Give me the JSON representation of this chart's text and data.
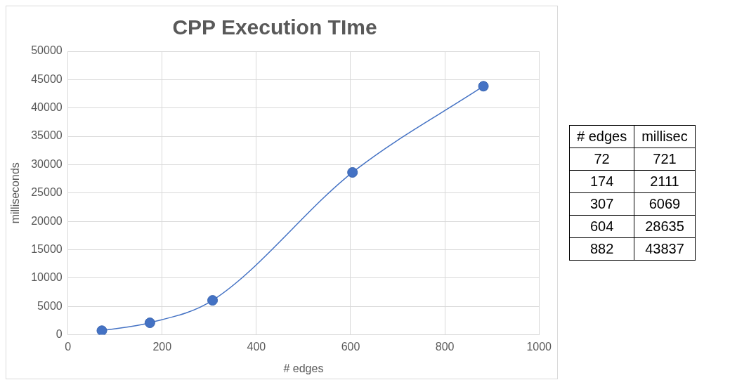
{
  "chart_data": [
    {
      "type": "line",
      "title": "CPP Execution TIme",
      "xlabel": "# edges",
      "ylabel": "milliseconds",
      "x": [
        72,
        174,
        307,
        604,
        882
      ],
      "series": [
        {
          "color": "#4472c4",
          "values": [
            721,
            2111,
            6069,
            28635,
            43837
          ]
        }
      ],
      "xlim": [
        0,
        1000
      ],
      "xticks": [
        0,
        200,
        400,
        600,
        800,
        1000
      ],
      "ylim": [
        0,
        50000
      ],
      "yticks": [
        0,
        5000,
        10000,
        15000,
        20000,
        25000,
        30000,
        35000,
        40000,
        45000,
        50000
      ],
      "grid": true,
      "marker": "circle",
      "legend": false
    },
    {
      "type": "other",
      "xlabel": "# edges",
      "ylabel": "millisec",
      "categories": [
        "72",
        "174",
        "307",
        "604",
        "882"
      ],
      "values": [
        721,
        2111,
        6069,
        28635,
        43837
      ],
      "data_labels": true
    }
  ]
}
